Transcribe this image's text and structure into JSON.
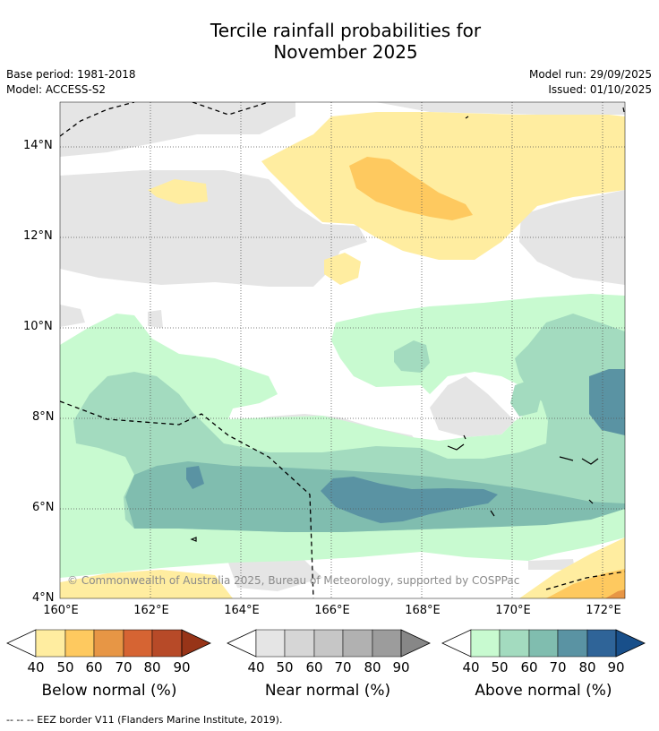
{
  "title_line1": "Tercile rainfall probabilities for",
  "title_line2": "November 2025",
  "base_period": "Base period: 1981-2018",
  "model": "Model: ACCESS-S2",
  "model_run": "Model run: 29/09/2025",
  "issued": "Issued: 01/10/2025",
  "lat_labels": [
    "14°N",
    "12°N",
    "10°N",
    "8°N",
    "6°N",
    "4°N"
  ],
  "lon_labels": [
    "160°E",
    "162°E",
    "164°E",
    "166°E",
    "168°E",
    "170°E",
    "172°E"
  ],
  "copyright": "© Commonwealth of Australia 2025, Bureau of Meteorology, supported by COSPPac",
  "colorbars": [
    {
      "label": "Below normal (%)",
      "ticks": [
        "40",
        "50",
        "60",
        "70",
        "80",
        "90"
      ],
      "colors": [
        "#ffeda0",
        "#fec95f",
        "#e79645",
        "#d66433",
        "#b74a28",
        "#973418"
      ]
    },
    {
      "label": "Near normal (%)",
      "ticks": [
        "40",
        "50",
        "60",
        "70",
        "80",
        "90"
      ],
      "colors": [
        "#e5e5e5",
        "#d6d6d6",
        "#c6c6c6",
        "#b1b1b1",
        "#9c9c9c",
        "#878787"
      ]
    },
    {
      "label": "Above normal (%)",
      "ticks": [
        "40",
        "50",
        "60",
        "70",
        "80",
        "90"
      ],
      "colors": [
        "#c8fad0",
        "#a3dbbf",
        "#80bdaf",
        "#5a93a3",
        "#2f6498",
        "#184f8a"
      ]
    }
  ],
  "footnote": "--  --  -- EEZ border V11 (Flanders Marine Institute, 2019)."
}
